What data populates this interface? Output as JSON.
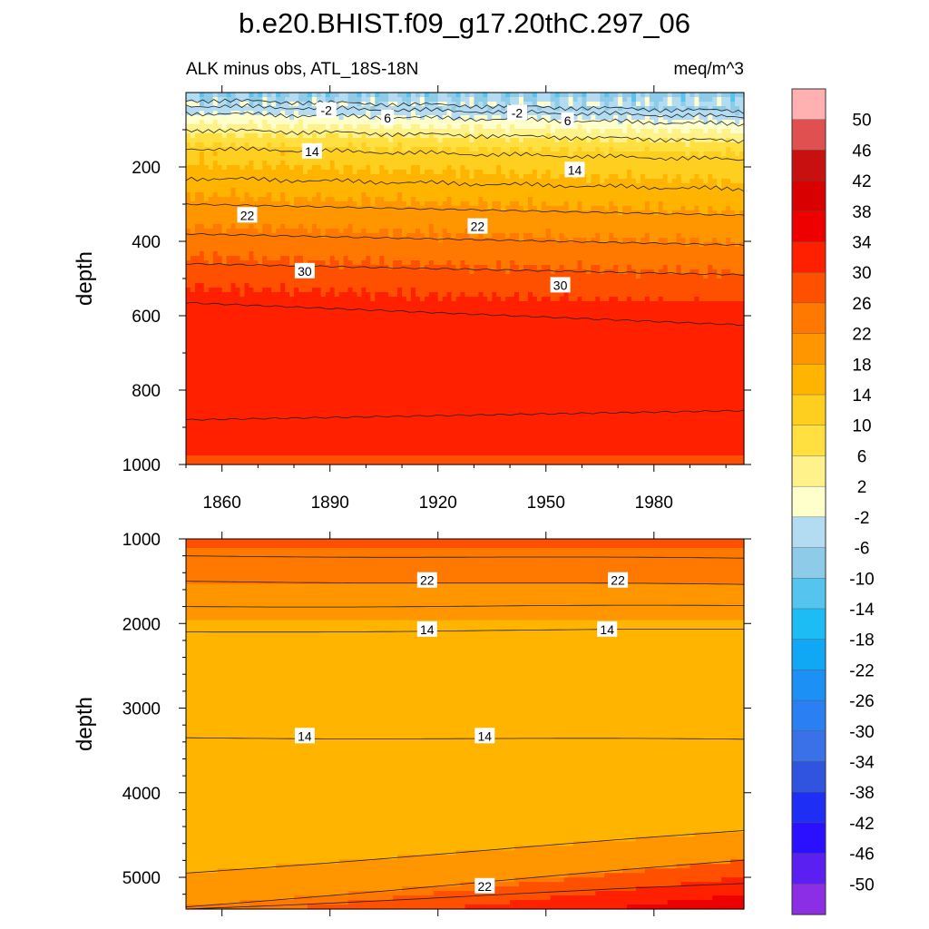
{
  "figure": {
    "title": "b.e20.BHIST.f09_g17.20thC.297_06"
  },
  "colors": {
    "levels": [
      -54,
      -50,
      -46,
      -42,
      -38,
      -34,
      -30,
      -26,
      -22,
      -18,
      -14,
      -10,
      -6,
      -2,
      2,
      6,
      10,
      14,
      18,
      22,
      26,
      30,
      34,
      38,
      42,
      46,
      50,
      54
    ],
    "fills": [
      "#8b2ee6",
      "#5a20f2",
      "#2a10ff",
      "#1f2ef5",
      "#3054e0",
      "#3a70e8",
      "#2a80f2",
      "#1c90f5",
      "#10a8f5",
      "#1ebcf5",
      "#55c4ee",
      "#8ecbe8",
      "#b3dbf2",
      "#ffffcc",
      "#fff28a",
      "#ffe040",
      "#ffcf20",
      "#ffb400",
      "#ff9600",
      "#ff7800",
      "#ff5000",
      "#ff2000",
      "#ee0000",
      "#d80000",
      "#c81010",
      "#e05050",
      "#ffb0b0"
    ]
  },
  "chart_data": [
    {
      "type": "heatmap",
      "subtitle_left": "ALK minus obs, ATL_18S-18N",
      "subtitle_right": "meq/m^3",
      "ylabel": "depth",
      "xlim": [
        1850,
        2005
      ],
      "ylim": [
        1000,
        0
      ],
      "xticks": [
        1860,
        1890,
        1920,
        1950,
        1980
      ],
      "xtick_labels": [
        "1860",
        "1890",
        "1920",
        "1950",
        "1980"
      ],
      "yticks": [
        200,
        400,
        600,
        800,
        1000
      ],
      "ytick_labels": [
        "200",
        "400",
        "600",
        "800",
        "1000"
      ],
      "contour_labels": [
        {
          "text": "-2",
          "x": 1889,
          "y": 48
        },
        {
          "text": "6",
          "x": 1906,
          "y": 68
        },
        {
          "text": "-2",
          "x": 1942,
          "y": 55
        },
        {
          "text": "6",
          "x": 1956,
          "y": 75
        },
        {
          "text": "14",
          "x": 1885,
          "y": 158
        },
        {
          "text": "14",
          "x": 1958,
          "y": 208
        },
        {
          "text": "22",
          "x": 1867,
          "y": 330
        },
        {
          "text": "22",
          "x": 1931,
          "y": 360
        },
        {
          "text": "30",
          "x": 1883,
          "y": 480
        },
        {
          "text": "30",
          "x": 1954,
          "y": 518
        }
      ]
    },
    {
      "type": "heatmap",
      "ylabel": "depth",
      "xlim": [
        1850,
        2005
      ],
      "ylim": [
        5375,
        1000
      ],
      "yticks": [
        1000,
        2000,
        3000,
        4000,
        5000
      ],
      "ytick_labels": [
        "1000",
        "2000",
        "3000",
        "4000",
        "5000"
      ],
      "contour_labels": [
        {
          "text": "22",
          "x": 1917,
          "y": 1490
        },
        {
          "text": "22",
          "x": 1970,
          "y": 1490
        },
        {
          "text": "14",
          "x": 1917,
          "y": 2070
        },
        {
          "text": "14",
          "x": 1967,
          "y": 2070
        },
        {
          "text": "14",
          "x": 1883,
          "y": 3330
        },
        {
          "text": "14",
          "x": 1933,
          "y": 3330
        },
        {
          "text": "22",
          "x": 1933,
          "y": 5105
        }
      ]
    }
  ],
  "colorbar": {
    "labels": [
      "50",
      "46",
      "42",
      "38",
      "34",
      "30",
      "26",
      "22",
      "18",
      "14",
      "10",
      "6",
      "2",
      "-2",
      "-6",
      "-10",
      "-14",
      "-18",
      "-22",
      "-26",
      "-30",
      "-34",
      "-38",
      "-42",
      "-46",
      "-50"
    ]
  }
}
